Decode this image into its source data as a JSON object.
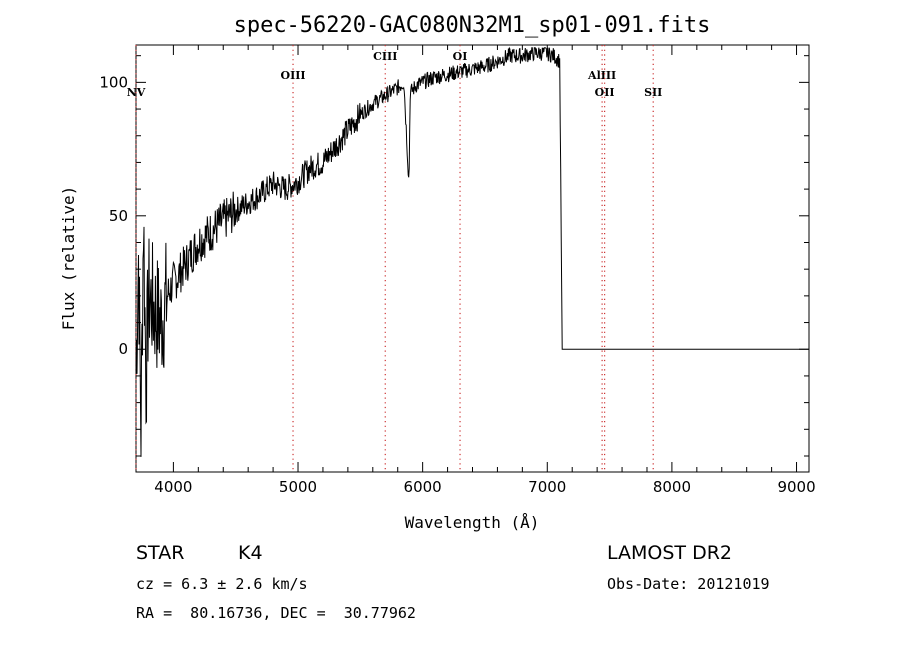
{
  "chart_data": {
    "type": "line",
    "title": "spec-56220-GAC080N32M1_sp01-091.fits",
    "xlabel": "Wavelength (Å)",
    "ylabel": "Flux (relative)",
    "xlim": [
      3700,
      9100
    ],
    "ylim": [
      -46,
      114
    ],
    "xticks": [
      4000,
      5000,
      6000,
      7000,
      8000,
      9000
    ],
    "yticks": [
      0,
      50,
      100
    ],
    "grid": false,
    "legend": "none",
    "colors": {
      "line": "#000000",
      "marker_lines": "#cc3333"
    },
    "series": [
      {
        "x": [
          3700,
          3720,
          3740,
          3760,
          3780,
          3800,
          3850,
          3900,
          3950,
          4000,
          4100,
          4200,
          4300,
          4400,
          4500,
          4600,
          4700,
          4800,
          4900,
          5000,
          5100,
          5200,
          5300,
          5400,
          5500,
          5600,
          5700,
          5800,
          5850,
          5890,
          5900,
          5950,
          6000,
          6100,
          6200,
          6300,
          6400,
          6500,
          6600,
          6700,
          6800,
          6900,
          7000,
          7050,
          7100,
          7120,
          7200,
          7500,
          8000,
          8500,
          9100
        ],
        "y": [
          -8,
          35,
          -30,
          50,
          -12,
          20,
          15,
          10,
          20,
          25,
          32,
          40,
          44,
          48,
          52,
          55,
          58,
          62,
          60,
          63,
          68,
          70,
          76,
          82,
          88,
          92,
          95,
          98,
          100,
          62,
          96,
          99,
          100,
          102,
          103,
          104,
          105,
          106,
          108,
          110,
          110,
          111,
          111,
          110,
          108,
          0,
          0,
          0,
          0,
          0,
          0
        ]
      }
    ],
    "spectral_lines": [
      {
        "name": "NV",
        "x": 3700,
        "label_row": 2
      },
      {
        "name": "OIII",
        "x": 4960,
        "label_row": 1
      },
      {
        "name": "CIII",
        "x": 5700,
        "label_row": 0
      },
      {
        "name": "OI",
        "x": 6300,
        "label_row": 0
      },
      {
        "name": "AlIII",
        "x": 7440,
        "label_row": 1
      },
      {
        "name": "OII",
        "x": 7460,
        "label_row": 2
      },
      {
        "name": "SII",
        "x": 7850,
        "label_row": 2
      }
    ]
  },
  "info": {
    "object_class": "STAR",
    "subclass": "K4",
    "survey": "LAMOST DR2",
    "cz": "cz = 6.3 ± 2.6 km/s",
    "obs_date": "Obs-Date: 20121019",
    "coords": "RA =  80.16736, DEC =  30.77962"
  }
}
